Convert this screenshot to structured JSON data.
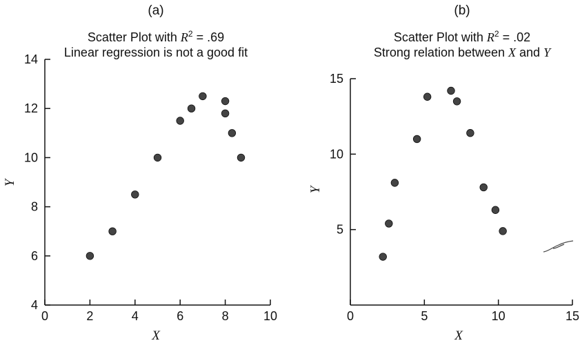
{
  "chart_data": [
    {
      "type": "scatter",
      "panel_label": "(a)",
      "title_prefix": "Scatter Plot with ",
      "title_r": "R",
      "title_sup": "2",
      "title_suffix": " = .69",
      "subtitle": "Linear regression is not a good fit",
      "xlabel": "X",
      "ylabel": "Y",
      "xlim": [
        0,
        10
      ],
      "ylim": [
        4,
        14
      ],
      "xticks": [
        0,
        2,
        4,
        6,
        8,
        10
      ],
      "yticks": [
        4,
        6,
        8,
        10,
        12,
        14
      ],
      "grid": false,
      "points": [
        {
          "x": 2,
          "y": 6
        },
        {
          "x": 3,
          "y": 7
        },
        {
          "x": 4,
          "y": 8.5
        },
        {
          "x": 5,
          "y": 10
        },
        {
          "x": 6,
          "y": 11.5
        },
        {
          "x": 6.5,
          "y": 12
        },
        {
          "x": 7,
          "y": 12.5
        },
        {
          "x": 8,
          "y": 12.3
        },
        {
          "x": 8,
          "y": 11.8
        },
        {
          "x": 8.3,
          "y": 11
        },
        {
          "x": 8.7,
          "y": 10
        }
      ]
    },
    {
      "type": "scatter",
      "panel_label": "(b)",
      "title_prefix": "Scatter Plot with ",
      "title_r": "R",
      "title_sup": "2",
      "title_suffix": " = .02",
      "subtitle_prefix": "Strong relation between ",
      "subtitle_x": "X",
      "subtitle_mid": " and ",
      "subtitle_y": "Y",
      "xlabel": "X",
      "ylabel": "Y",
      "xlim": [
        0,
        15
      ],
      "ylim": [
        0,
        15
      ],
      "xticks": [
        0,
        5,
        10,
        15
      ],
      "yticks": [
        5,
        10,
        15
      ],
      "xticklabels": [
        "0",
        "5",
        "10",
        "15"
      ],
      "yticklabels": [
        "5",
        "10",
        "15"
      ],
      "grid": false,
      "points": [
        {
          "x": 2.2,
          "y": 3.2
        },
        {
          "x": 2.6,
          "y": 5.4
        },
        {
          "x": 3.0,
          "y": 8.1
        },
        {
          "x": 4.5,
          "y": 11.0
        },
        {
          "x": 5.2,
          "y": 13.8
        },
        {
          "x": 6.8,
          "y": 14.2
        },
        {
          "x": 7.2,
          "y": 13.5
        },
        {
          "x": 8.1,
          "y": 11.4
        },
        {
          "x": 9.0,
          "y": 7.8
        },
        {
          "x": 9.8,
          "y": 6.3
        },
        {
          "x": 10.3,
          "y": 4.9
        }
      ]
    }
  ]
}
